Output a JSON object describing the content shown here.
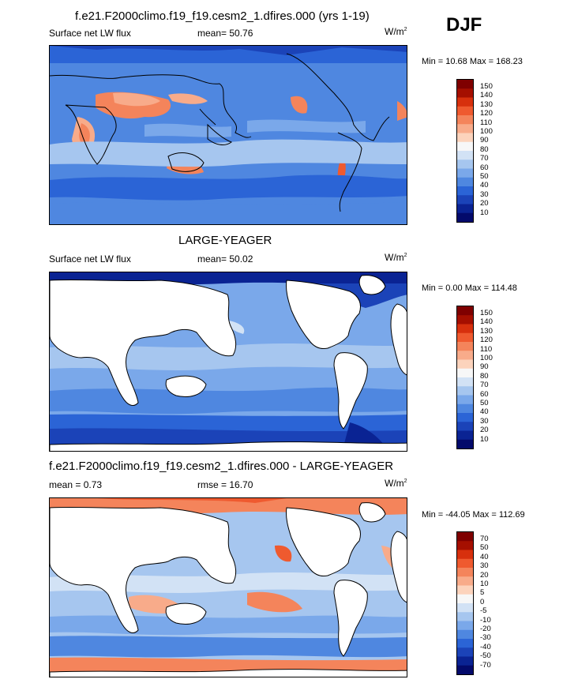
{
  "season": "DJF",
  "panels": [
    {
      "title": "f.e21.F2000climo.f19_f19.cesm2_1.dfires.000 (yrs 1-19)",
      "variable": "Surface net LW flux",
      "stat": "mean=  50.76",
      "units": "W/m",
      "units_sup": "2",
      "minmax": "Min =  10.68 Max = 168.23",
      "colorbar": [
        "150",
        "140",
        "130",
        "120",
        "110",
        "100",
        "90",
        "80",
        "70",
        "60",
        "50",
        "40",
        "30",
        "20",
        "10"
      ]
    },
    {
      "title": "LARGE-YEAGER",
      "variable": "Surface net LW flux",
      "stat": "mean=  50.02",
      "units": "W/m",
      "units_sup": "2",
      "minmax": "Min =   0.00 Max = 114.48",
      "colorbar": [
        "150",
        "140",
        "130",
        "120",
        "110",
        "100",
        "90",
        "80",
        "70",
        "60",
        "50",
        "40",
        "30",
        "20",
        "10"
      ]
    },
    {
      "title": "f.e21.F2000climo.f19_f19.cesm2_1.dfires.000 - LARGE-YEAGER",
      "variable": "mean =   0.73",
      "stat": "rmse =  16.70",
      "units": "W/m",
      "units_sup": "2",
      "minmax": "Min = -44.05 Max = 112.69",
      "colorbar": [
        "70",
        "50",
        "40",
        "30",
        "20",
        "10",
        "5",
        "0",
        "-5",
        "-10",
        "-20",
        "-30",
        "-40",
        "-50",
        "-70"
      ]
    }
  ],
  "colors": {
    "abs_scale": [
      "#7f0000",
      "#a50f00",
      "#d7300d",
      "#ef5a2f",
      "#f4845b",
      "#f8ab8a",
      "#fcd3bc",
      "#f7f7f7",
      "#d2e2f5",
      "#a6c6ef",
      "#7aa8ea",
      "#4f87e0",
      "#2b64d6",
      "#1b43b8",
      "#0a2393",
      "#030a6b"
    ],
    "diff_scale": [
      "#7f0000",
      "#a50f00",
      "#d7300d",
      "#ef5a2f",
      "#f4845b",
      "#f8ab8a",
      "#fcd3bc",
      "#f7f7f7",
      "#d2e2f5",
      "#a6c6ef",
      "#7aa8ea",
      "#4f87e0",
      "#2b64d6",
      "#1b43b8",
      "#0a2393",
      "#030a6b"
    ]
  }
}
